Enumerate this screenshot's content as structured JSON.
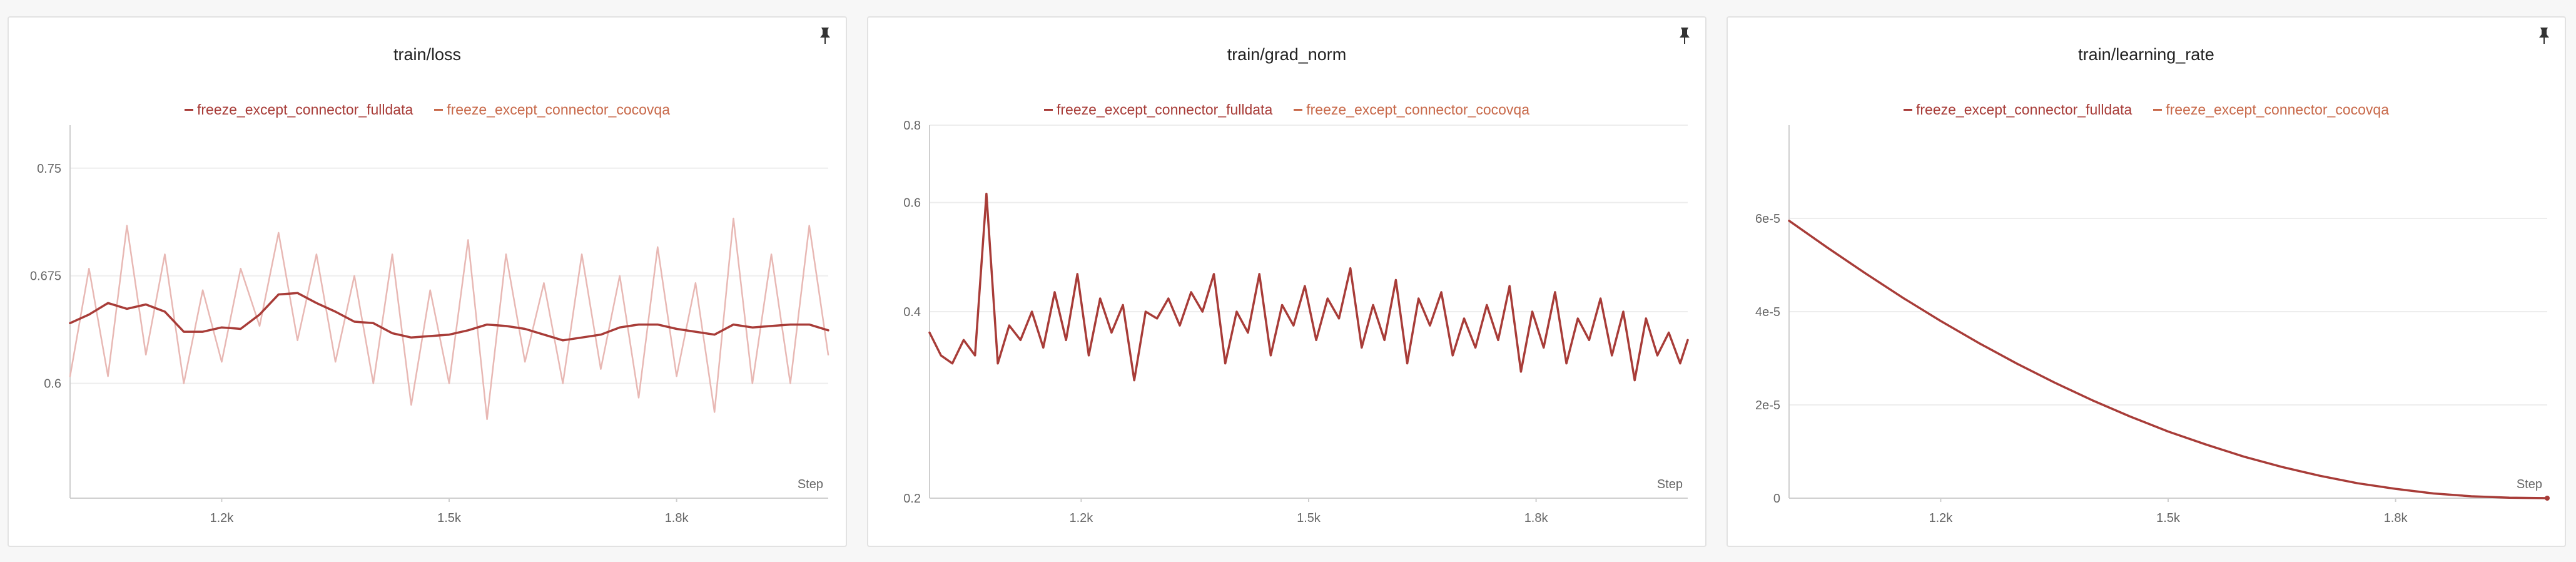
{
  "colors": {
    "fulldata": "#a83c38",
    "fulldata_raw": "#e8b8b4",
    "cocovqa": "#c8694a"
  },
  "chart_data": [
    {
      "type": "line",
      "title": "train/loss",
      "xlabel": "Step",
      "ylabel": "",
      "xlim": [
        1000,
        2000
      ],
      "ylim": [
        0.52,
        0.78
      ],
      "xticks": [
        "1.2k",
        "1.5k",
        "1.8k"
      ],
      "xtick_values": [
        1200,
        1500,
        1800
      ],
      "yticks": [
        "0.6",
        "0.675",
        "0.75"
      ],
      "ytick_values": [
        0.6,
        0.675,
        0.75
      ],
      "legend": [
        "freeze_except_connector_fulldata",
        "freeze_except_connector_cocovqa"
      ],
      "series": [
        {
          "name": "freeze_except_connector_fulldata",
          "x": [
            1000,
            1025,
            1050,
            1075,
            1100,
            1125,
            1150,
            1175,
            1200,
            1225,
            1250,
            1275,
            1300,
            1325,
            1350,
            1375,
            1400,
            1425,
            1450,
            1475,
            1500,
            1525,
            1550,
            1575,
            1600,
            1625,
            1650,
            1675,
            1700,
            1725,
            1750,
            1775,
            1800,
            1825,
            1850,
            1875,
            1900,
            1925,
            1950,
            1975,
            2000
          ],
          "y": [
            0.642,
            0.648,
            0.656,
            0.652,
            0.655,
            0.65,
            0.636,
            0.636,
            0.639,
            0.638,
            0.648,
            0.662,
            0.663,
            0.656,
            0.65,
            0.643,
            0.642,
            0.635,
            0.632,
            0.633,
            0.634,
            0.637,
            0.641,
            0.64,
            0.638,
            0.634,
            0.63,
            0.632,
            0.634,
            0.639,
            0.641,
            0.641,
            0.638,
            0.636,
            0.634,
            0.641,
            0.639,
            0.64,
            0.641,
            0.641,
            0.637
          ]
        },
        {
          "name": "freeze_except_connector_fulldata (raw)",
          "x": [
            1000,
            1025,
            1050,
            1075,
            1100,
            1125,
            1150,
            1175,
            1200,
            1225,
            1250,
            1275,
            1300,
            1325,
            1350,
            1375,
            1400,
            1425,
            1450,
            1475,
            1500,
            1525,
            1550,
            1575,
            1600,
            1625,
            1650,
            1675,
            1700,
            1725,
            1750,
            1775,
            1800,
            1825,
            1850,
            1875,
            1900,
            1925,
            1950,
            1975,
            2000
          ],
          "y": [
            0.605,
            0.68,
            0.605,
            0.71,
            0.62,
            0.69,
            0.6,
            0.665,
            0.615,
            0.68,
            0.64,
            0.705,
            0.63,
            0.69,
            0.615,
            0.675,
            0.6,
            0.69,
            0.585,
            0.665,
            0.6,
            0.7,
            0.575,
            0.69,
            0.615,
            0.67,
            0.6,
            0.69,
            0.61,
            0.675,
            0.59,
            0.695,
            0.605,
            0.67,
            0.58,
            0.715,
            0.6,
            0.69,
            0.6,
            0.71,
            0.62
          ]
        }
      ]
    },
    {
      "type": "line",
      "title": "train/grad_norm",
      "xlabel": "Step",
      "ylabel": "",
      "xlim": [
        1000,
        2000
      ],
      "ylim": [
        0.2,
        0.8
      ],
      "yscale": "log",
      "xticks": [
        "1.2k",
        "1.5k",
        "1.8k"
      ],
      "xtick_values": [
        1200,
        1500,
        1800
      ],
      "yticks": [
        "0.2",
        "0.4",
        "0.6",
        "0.8"
      ],
      "ytick_values": [
        0.2,
        0.4,
        0.6,
        0.8
      ],
      "legend": [
        "freeze_except_connector_fulldata",
        "freeze_except_connector_cocovqa"
      ],
      "series": [
        {
          "name": "freeze_except_connector_fulldata",
          "x": [
            1000,
            1015,
            1030,
            1045,
            1060,
            1075,
            1090,
            1105,
            1120,
            1135,
            1150,
            1165,
            1180,
            1195,
            1210,
            1225,
            1240,
            1255,
            1270,
            1285,
            1300,
            1315,
            1330,
            1345,
            1360,
            1375,
            1390,
            1405,
            1420,
            1435,
            1450,
            1465,
            1480,
            1495,
            1510,
            1525,
            1540,
            1555,
            1570,
            1585,
            1600,
            1615,
            1630,
            1645,
            1660,
            1675,
            1690,
            1705,
            1720,
            1735,
            1750,
            1765,
            1780,
            1795,
            1810,
            1825,
            1840,
            1855,
            1870,
            1885,
            1900,
            1915,
            1930,
            1945,
            1960,
            1975,
            1990,
            2000
          ],
          "y": [
            0.37,
            0.34,
            0.33,
            0.36,
            0.34,
            0.62,
            0.33,
            0.38,
            0.36,
            0.4,
            0.35,
            0.43,
            0.36,
            0.46,
            0.34,
            0.42,
            0.37,
            0.41,
            0.31,
            0.4,
            0.39,
            0.42,
            0.38,
            0.43,
            0.4,
            0.46,
            0.33,
            0.4,
            0.37,
            0.46,
            0.34,
            0.41,
            0.38,
            0.44,
            0.36,
            0.42,
            0.39,
            0.47,
            0.35,
            0.41,
            0.36,
            0.45,
            0.33,
            0.42,
            0.38,
            0.43,
            0.34,
            0.39,
            0.35,
            0.41,
            0.36,
            0.44,
            0.32,
            0.4,
            0.35,
            0.43,
            0.33,
            0.39,
            0.36,
            0.42,
            0.34,
            0.4,
            0.31,
            0.39,
            0.34,
            0.37,
            0.33,
            0.36
          ]
        }
      ]
    },
    {
      "type": "line",
      "title": "train/learning_rate",
      "xlabel": "Step",
      "ylabel": "",
      "xlim": [
        1000,
        2000
      ],
      "ylim": [
        0,
        8e-05
      ],
      "xticks": [
        "1.2k",
        "1.5k",
        "1.8k"
      ],
      "xtick_values": [
        1200,
        1500,
        1800
      ],
      "yticks": [
        "0",
        "2e-5",
        "4e-5",
        "6e-5"
      ],
      "ytick_values": [
        0,
        2e-05,
        4e-05,
        6e-05
      ],
      "legend": [
        "freeze_except_connector_fulldata",
        "freeze_except_connector_cocovqa"
      ],
      "series": [
        {
          "name": "freeze_except_connector_fulldata",
          "x": [
            1000,
            1050,
            1100,
            1150,
            1200,
            1250,
            1300,
            1350,
            1400,
            1450,
            1500,
            1550,
            1600,
            1650,
            1700,
            1750,
            1800,
            1850,
            1900,
            1950,
            2000
          ],
          "y": [
            5.95e-05,
            5.38e-05,
            4.83e-05,
            4.3e-05,
            3.8e-05,
            3.33e-05,
            2.89e-05,
            2.48e-05,
            2.1e-05,
            1.75e-05,
            1.43e-05,
            1.15e-05,
            8.9e-06,
            6.7e-06,
            4.8e-06,
            3.2e-06,
            2e-06,
            1e-06,
            4e-07,
            1e-07,
            0.0
          ]
        }
      ]
    }
  ]
}
